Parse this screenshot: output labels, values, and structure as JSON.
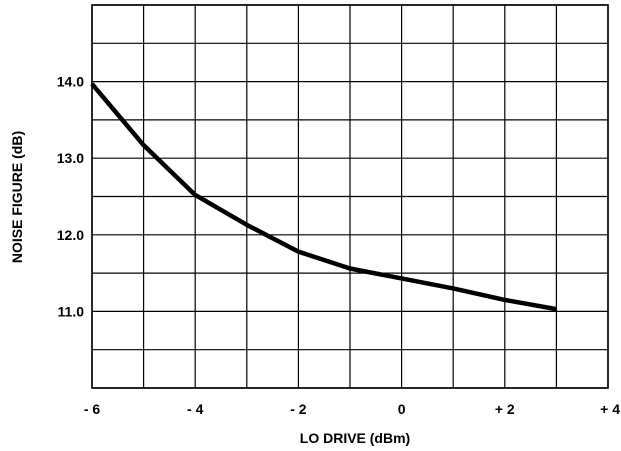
{
  "chart_data": {
    "type": "line",
    "title": "",
    "xlabel": "LO DRIVE (dBm)",
    "ylabel": "NOISE FIGURE (dB)",
    "xlim": [
      -6,
      4
    ],
    "ylim": [
      10,
      15
    ],
    "x_ticks": [
      -6,
      -4,
      -2,
      0,
      2,
      4
    ],
    "x_tick_labels": [
      "- 6",
      "- 4",
      "- 2",
      "0",
      "+ 2",
      "+ 4"
    ],
    "y_ticks": [
      11,
      12,
      13,
      14
    ],
    "y_tick_labels": [
      "11.0",
      "12.0",
      "13.0",
      "14.0"
    ],
    "grid": true,
    "x_grid_step": 1,
    "y_grid_step": 0.5,
    "series": [
      {
        "x": [
          -6,
          -5,
          -4,
          -3,
          -2,
          -1,
          0,
          1,
          2,
          3
        ],
        "y": [
          13.97,
          13.17,
          12.52,
          12.13,
          11.78,
          11.56,
          11.43,
          11.3,
          11.15,
          11.03
        ]
      }
    ],
    "line_color": "#000000",
    "grid_color": "#000000"
  }
}
